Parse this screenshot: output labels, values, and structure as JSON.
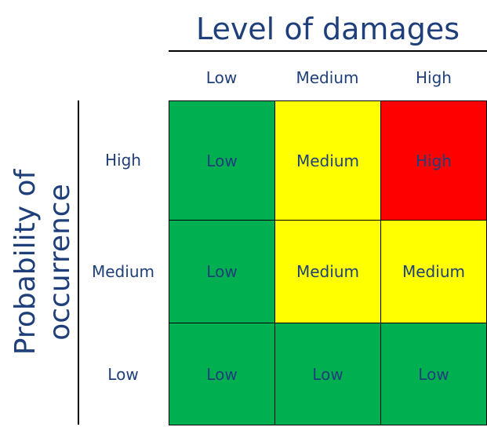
{
  "x_axis": {
    "title": "Level of damages",
    "columns": [
      "Low",
      "Medium",
      "High"
    ]
  },
  "y_axis": {
    "title": "Probability of occurrence",
    "rows": [
      "High",
      "Medium",
      "Low"
    ]
  },
  "matrix": {
    "cells": [
      [
        {
          "label": "Low",
          "color": "#00b050"
        },
        {
          "label": "Medium",
          "color": "#ffff00"
        },
        {
          "label": "High",
          "color": "#ff0000"
        }
      ],
      [
        {
          "label": "Low",
          "color": "#00b050"
        },
        {
          "label": "Medium",
          "color": "#ffff00"
        },
        {
          "label": "Medium",
          "color": "#ffff00"
        }
      ],
      [
        {
          "label": "Low",
          "color": "#00b050"
        },
        {
          "label": "Low",
          "color": "#00b050"
        },
        {
          "label": "Low",
          "color": "#00b050"
        }
      ]
    ]
  },
  "colors": {
    "text": "#1f3f7a",
    "low": "#00b050",
    "medium": "#ffff00",
    "high": "#ff0000"
  }
}
